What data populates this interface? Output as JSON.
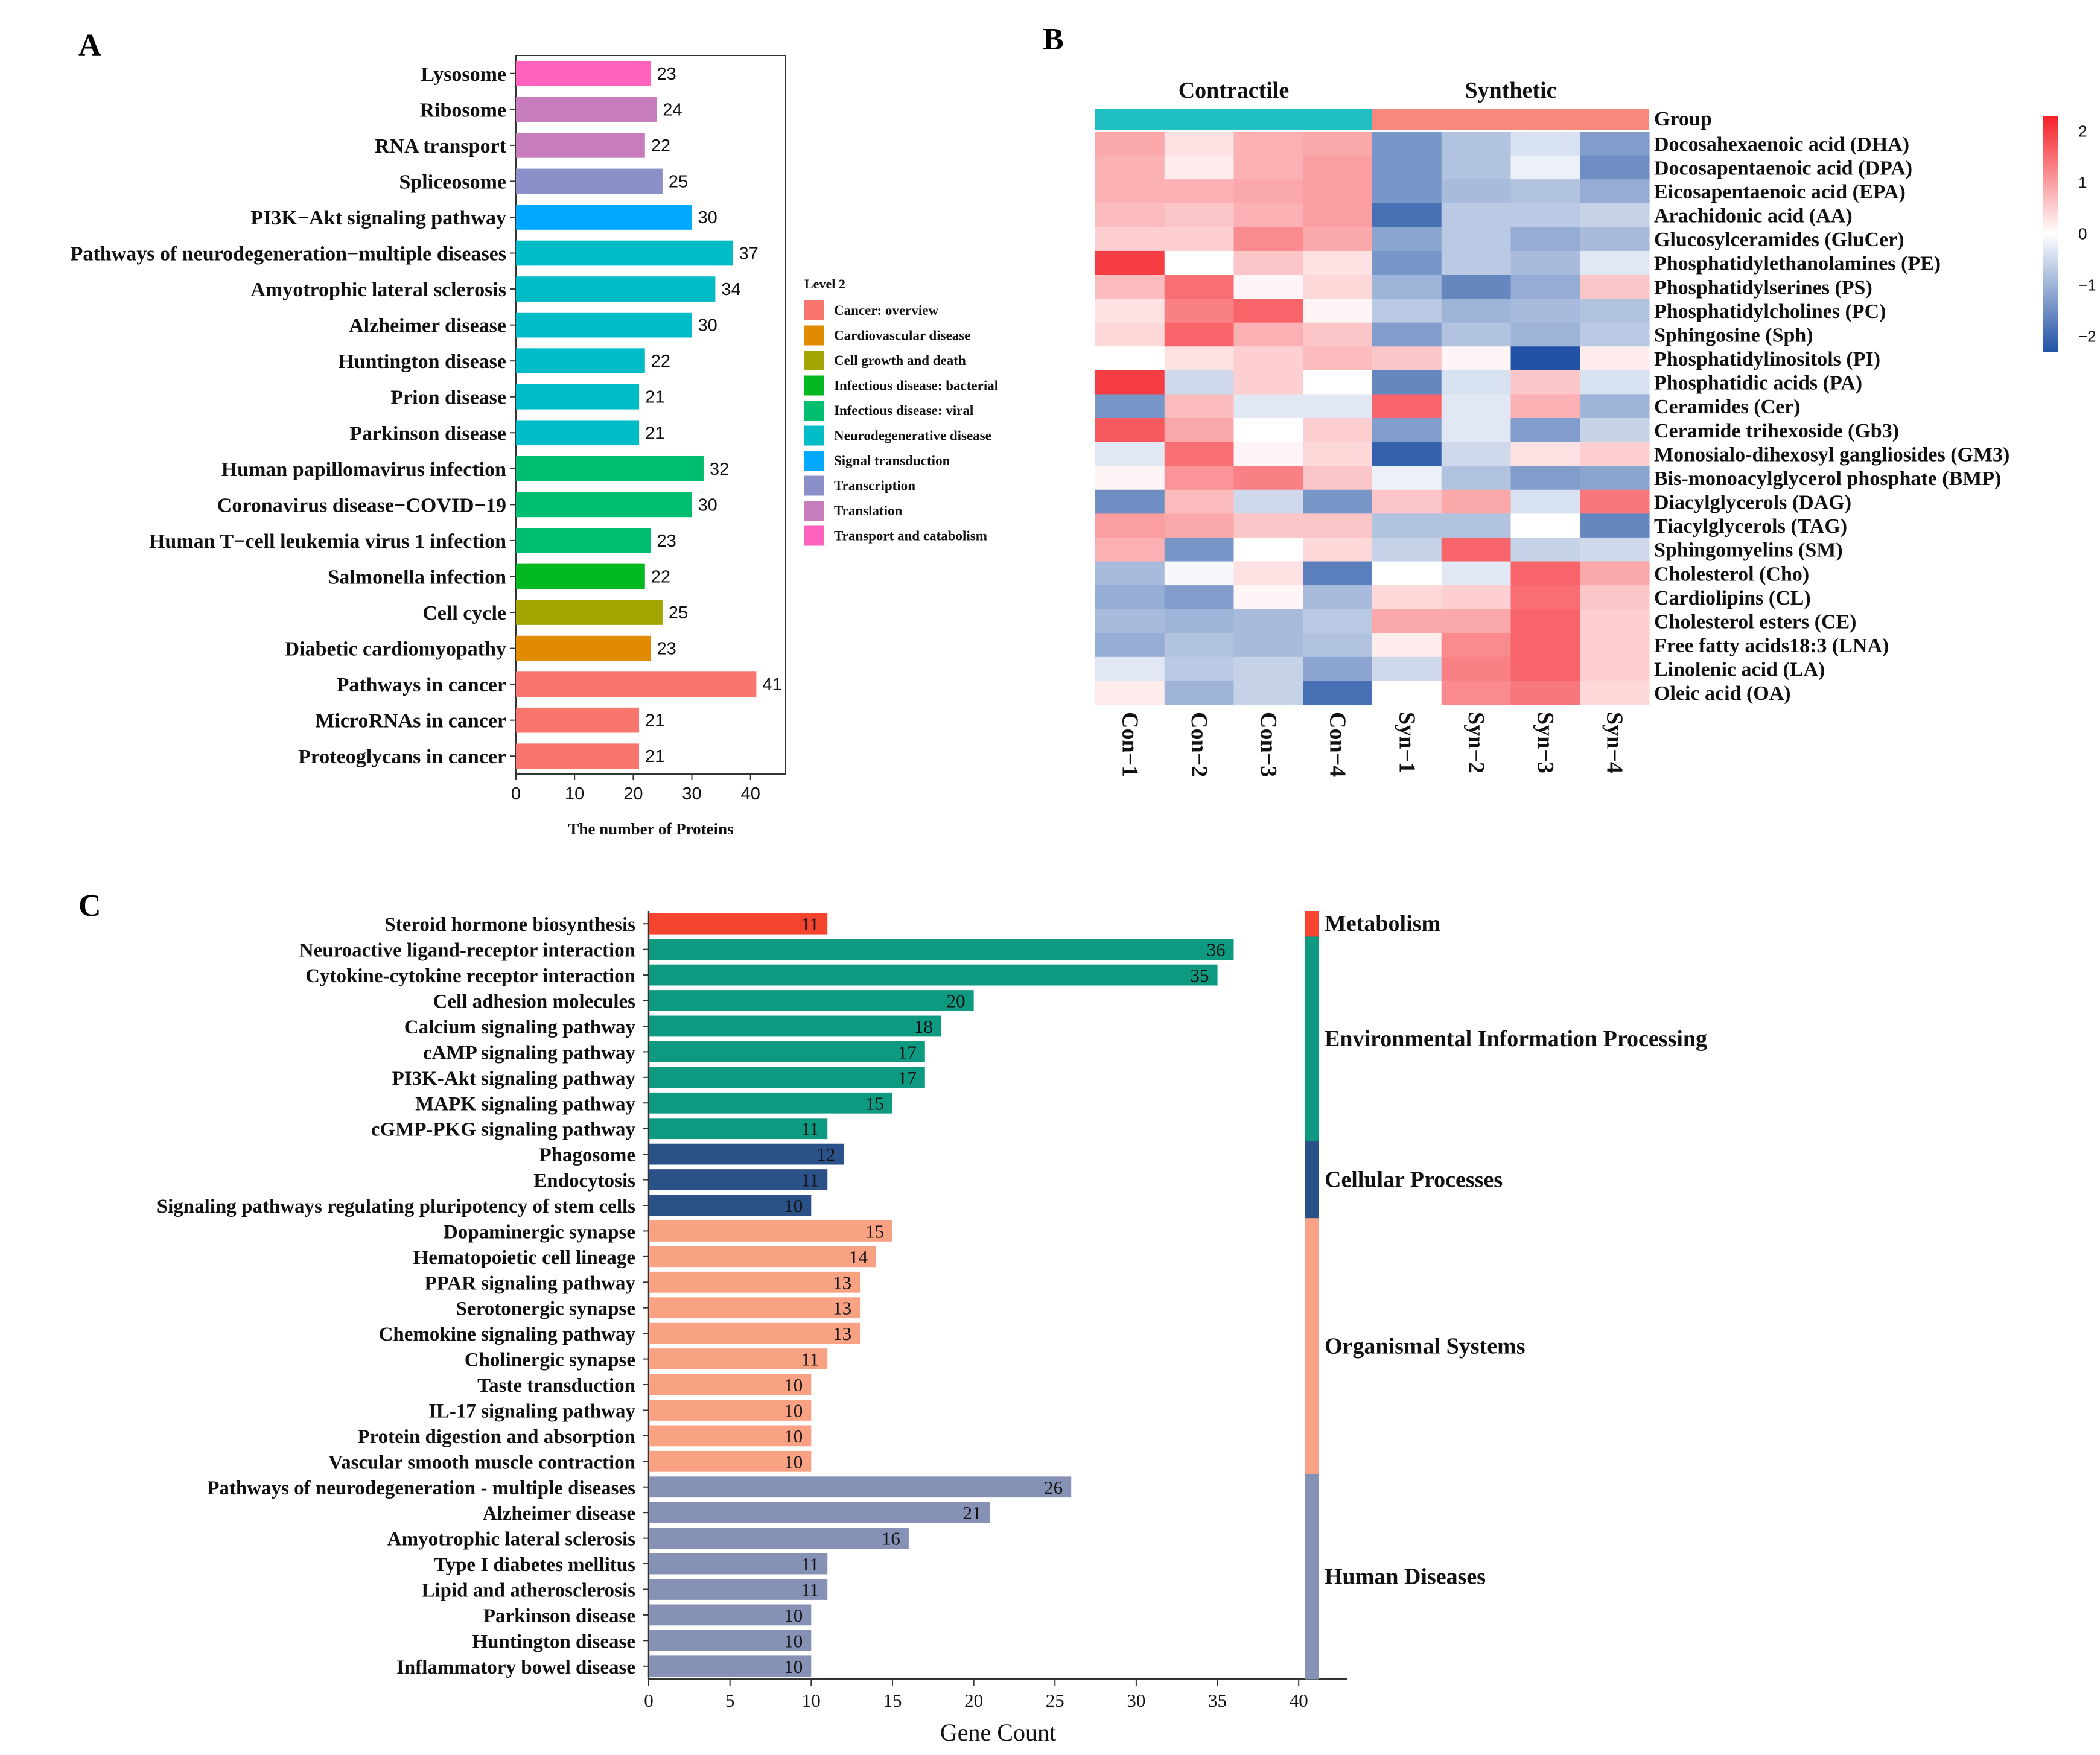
{
  "panel_labels": {
    "a": "A",
    "b": "B",
    "c": "C"
  },
  "chart_data": [
    {
      "panel": "A",
      "type": "bar",
      "orientation": "horizontal",
      "categories": [
        "Lysosome",
        "Ribosome",
        "RNA transport",
        "Spliceosome",
        "PI3K−Akt signaling pathway",
        "Pathways of neurodegeneration−multiple diseases",
        "Amyotrophic lateral sclerosis",
        "Alzheimer disease",
        "Huntington disease",
        "Prion disease",
        "Parkinson disease",
        "Human papillomavirus infection",
        "Coronavirus disease−COVID−19",
        "Human T−cell leukemia virus 1 infection",
        "Salmonella infection",
        "Cell cycle",
        "Diabetic cardiomyopathy",
        "Pathways in cancer",
        "MicroRNAs in cancer",
        "Proteoglycans in cancer"
      ],
      "values": [
        23,
        24,
        22,
        25,
        30,
        37,
        34,
        30,
        22,
        21,
        21,
        32,
        30,
        23,
        22,
        25,
        23,
        41,
        21,
        21
      ],
      "groups": [
        "Transport and catabolism",
        "Translation",
        "Translation",
        "Transcription",
        "Signal transduction",
        "Neurodegenerative disease",
        "Neurodegenerative disease",
        "Neurodegenerative disease",
        "Neurodegenerative disease",
        "Neurodegenerative disease",
        "Neurodegenerative disease",
        "Infectious disease: viral",
        "Infectious disease: viral",
        "Infectious disease: viral",
        "Infectious disease: bacterial",
        "Cell growth and death",
        "Cardiovascular disease",
        "Cancer: overview",
        "Cancer: overview",
        "Cancer: overview"
      ],
      "xlabel": "The number of Proteins",
      "xlim": [
        0,
        46
      ],
      "xticks": [
        0,
        10,
        20,
        30,
        40
      ],
      "legend": {
        "title": "Level 2",
        "placement": "right",
        "entries": [
          {
            "label": "Cancer: overview",
            "color": "#F8766D"
          },
          {
            "label": "Cardiovascular disease",
            "color": "#E08B00"
          },
          {
            "label": "Cell growth and death",
            "color": "#A3A500"
          },
          {
            "label": "Infectious disease: bacterial",
            "color": "#00B81F"
          },
          {
            "label": "Infectious disease: viral",
            "color": "#00BE70"
          },
          {
            "label": "Neurodegenerative disease",
            "color": "#00BCC6"
          },
          {
            "label": "Signal transduction",
            "color": "#00A9FF"
          },
          {
            "label": "Transcription",
            "color": "#8C90C8"
          },
          {
            "label": "Translation",
            "color": "#C77CBB"
          },
          {
            "label": "Transport and catabolism",
            "color": "#FF62BC"
          }
        ]
      }
    },
    {
      "panel": "B",
      "type": "heatmap",
      "group_title": "Group",
      "groups": [
        {
          "label": "Contractile",
          "color": "#1FBFC3",
          "columns": 4
        },
        {
          "label": "Synthetic",
          "color": "#F8877E",
          "columns": 4
        }
      ],
      "columns": [
        "Con−1",
        "Con−2",
        "Con−3",
        "Con−4",
        "Syn−1",
        "Syn−2",
        "Syn−3",
        "Syn−4"
      ],
      "rows": [
        "Docosahexaenoic acid (DHA)",
        "Docosapentaenoic acid (DPA)",
        "Eicosapentaenoic acid (EPA)",
        "Arachidonic acid (AA)",
        "Glucosylceramides (GluCer)",
        "Phosphatidylethanolamines (PE)",
        "Phosphatidylserines (PS)",
        "Phosphatidylcholines (PC)",
        "Sphingosine (Sph)",
        "Phosphatidylinositols (PI)",
        "Phosphatidic acids (PA)",
        "Ceramides (Cer)",
        "Ceramide trihexoside (Gb3)",
        "Monosialo-dihexosyl gangliosides (GM3)",
        "Bis-monoacylglycerol phosphate (BMP)",
        "Diacylglycerols (DAG)",
        "Tiacylglycerols (TAG)",
        "Sphingomyelins (SM)",
        "Cholesterol (Cho)",
        "Cardiolipins (CL)",
        "Cholesterol esters (CE)",
        "Free fatty acids18:3 (LNA)",
        "Linolenic acid (LA)",
        "Oleic acid (OA)"
      ],
      "values": [
        [
          0.9,
          0.3,
          0.8,
          0.9,
          -1.4,
          -0.8,
          -0.4,
          -1.3
        ],
        [
          0.8,
          0.2,
          0.8,
          1.0,
          -1.4,
          -0.8,
          -0.2,
          -1.5
        ],
        [
          0.8,
          0.8,
          0.9,
          1.0,
          -1.4,
          -0.9,
          -0.8,
          -1.1
        ],
        [
          0.7,
          0.6,
          0.8,
          1.0,
          -1.9,
          -0.7,
          -0.7,
          -0.6
        ],
        [
          0.5,
          0.5,
          1.2,
          0.9,
          -1.2,
          -0.7,
          -1.1,
          -0.9
        ],
        [
          2.0,
          0.0,
          0.6,
          0.3,
          -1.4,
          -0.7,
          -0.9,
          -0.3
        ],
        [
          0.7,
          1.5,
          0.1,
          0.4,
          -1.0,
          -1.6,
          -1.1,
          0.6
        ],
        [
          0.3,
          1.3,
          1.6,
          0.1,
          -0.7,
          -1.0,
          -0.9,
          -0.8
        ],
        [
          0.4,
          1.6,
          0.8,
          0.6,
          -1.3,
          -0.8,
          -1.0,
          -0.7
        ],
        [
          0.0,
          0.3,
          0.5,
          0.7,
          0.6,
          0.1,
          -2.3,
          0.2
        ],
        [
          2.0,
          -0.5,
          0.5,
          0.0,
          -1.6,
          -0.4,
          0.6,
          -0.4
        ],
        [
          -1.4,
          0.7,
          -0.3,
          -0.3,
          1.6,
          -0.3,
          0.8,
          -1.0
        ],
        [
          1.7,
          0.9,
          0.0,
          0.5,
          -1.3,
          -0.3,
          -1.3,
          -0.6
        ],
        [
          -0.3,
          1.5,
          0.1,
          0.4,
          -2.1,
          -0.5,
          0.3,
          0.5
        ],
        [
          0.1,
          1.1,
          1.3,
          0.6,
          -0.2,
          -0.8,
          -1.3,
          -1.2
        ],
        [
          -1.5,
          0.7,
          -0.5,
          -1.4,
          0.6,
          0.9,
          -0.4,
          1.4
        ],
        [
          1.0,
          0.9,
          0.6,
          0.6,
          -0.8,
          -0.8,
          0.0,
          -1.6
        ],
        [
          0.8,
          -1.4,
          0.0,
          0.4,
          -0.6,
          1.6,
          -0.6,
          -0.5
        ],
        [
          -0.9,
          -0.1,
          0.3,
          -1.7,
          0.0,
          -0.3,
          1.6,
          0.9
        ],
        [
          -1.1,
          -1.3,
          0.1,
          -0.9,
          0.4,
          0.5,
          1.5,
          0.6
        ],
        [
          -0.9,
          -1.0,
          -0.9,
          -0.7,
          0.9,
          0.9,
          1.6,
          0.5
        ],
        [
          -1.1,
          -0.8,
          -0.9,
          -0.8,
          0.2,
          1.2,
          1.6,
          0.5
        ],
        [
          -0.3,
          -0.7,
          -0.6,
          -1.2,
          -0.5,
          1.3,
          1.6,
          0.5
        ],
        [
          0.2,
          -1.0,
          -0.6,
          -1.9,
          0.0,
          1.2,
          1.4,
          0.4
        ]
      ],
      "colorbar": {
        "ticks": [
          2,
          1,
          0,
          -1,
          -2
        ],
        "tick_labels": [
          "2",
          "1",
          "0",
          "−1",
          "−2"
        ],
        "range": [
          -2.3,
          2.3
        ],
        "colors": [
          "#2152A5",
          "#FFFFFF",
          "#F42027"
        ],
        "placement": "top-right"
      }
    },
    {
      "panel": "C",
      "type": "bar",
      "orientation": "horizontal",
      "categories": [
        "Steroid hormone biosynthesis",
        "Neuroactive ligand-receptor interaction",
        "Cytokine-cytokine receptor interaction",
        "Cell adhesion molecules",
        "Calcium signaling pathway",
        "cAMP signaling pathway",
        "PI3K-Akt signaling pathway",
        "MAPK signaling pathway",
        "cGMP-PKG signaling pathway",
        "Phagosome",
        "Endocytosis",
        "Signaling pathways regulating pluripotency of stem cells",
        "Dopaminergic synapse",
        "Hematopoietic cell lineage",
        "PPAR signaling pathway",
        "Serotonergic synapse",
        "Chemokine signaling pathway",
        "Cholinergic synapse",
        "Taste transduction",
        "IL-17 signaling pathway",
        "Protein digestion and absorption",
        "Vascular smooth muscle contraction",
        "Pathways of neurodegeneration - multiple diseases",
        "Alzheimer disease",
        "Amyotrophic lateral sclerosis",
        "Type I diabetes mellitus",
        "Lipid and atherosclerosis",
        "Parkinson disease",
        "Huntington disease",
        "Inflammatory bowel disease"
      ],
      "values": [
        11,
        36,
        35,
        20,
        18,
        17,
        17,
        15,
        11,
        12,
        11,
        10,
        15,
        14,
        13,
        13,
        13,
        11,
        10,
        10,
        10,
        10,
        26,
        21,
        16,
        11,
        11,
        10,
        10,
        10
      ],
      "group_index": [
        0,
        1,
        1,
        1,
        1,
        1,
        1,
        1,
        1,
        2,
        2,
        2,
        3,
        3,
        3,
        3,
        3,
        3,
        3,
        3,
        3,
        3,
        4,
        4,
        4,
        4,
        4,
        4,
        4,
        4
      ],
      "groups": [
        {
          "label": "Metabolism",
          "color": "#F5452E"
        },
        {
          "label": "Environmental Information Processing",
          "color": "#0D9A80"
        },
        {
          "label": "Cellular Processes",
          "color": "#2B5189"
        },
        {
          "label": "Organismal Systems",
          "color": "#F9A183"
        },
        {
          "label": "Human Diseases",
          "color": "#8592B5"
        }
      ],
      "xlabel": "Gene Count",
      "xlim": [
        0,
        43
      ],
      "xticks": [
        0,
        5,
        10,
        15,
        20,
        25,
        30,
        35,
        40
      ],
      "legend_placement": "right"
    }
  ]
}
